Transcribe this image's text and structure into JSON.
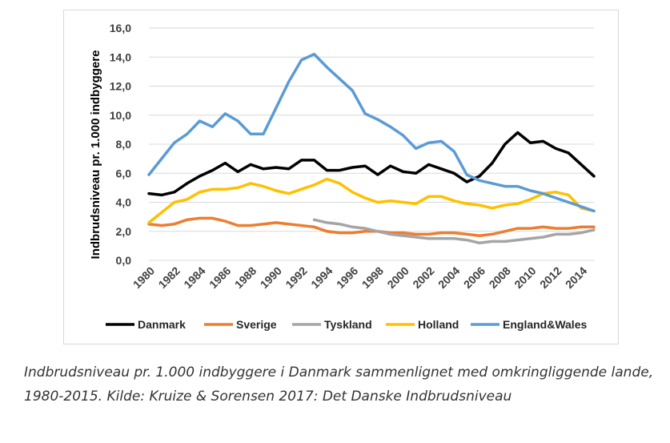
{
  "chart_data": {
    "type": "line",
    "ylabel": "Indbrudsniveau pr. 1.000 indbyggere",
    "xlabel": "",
    "ylim": [
      0,
      16
    ],
    "yticks": [
      "0,0",
      "2,0",
      "4,0",
      "6,0",
      "8,0",
      "10,0",
      "12,0",
      "14,0",
      "16,0"
    ],
    "xtick_labels": [
      "1980",
      "1982",
      "1984",
      "1986",
      "1988",
      "1990",
      "1992",
      "1994",
      "1996",
      "1998",
      "2000",
      "2002",
      "2004",
      "2006",
      "2008",
      "2010",
      "2012",
      "2014"
    ],
    "xlim": [
      1980,
      2015
    ],
    "grid": true,
    "legend_position": "bottom",
    "x": [
      1980,
      1981,
      1982,
      1983,
      1984,
      1985,
      1986,
      1987,
      1988,
      1989,
      1990,
      1991,
      1992,
      1993,
      1994,
      1995,
      1996,
      1997,
      1998,
      1999,
      2000,
      2001,
      2002,
      2003,
      2004,
      2005,
      2006,
      2007,
      2008,
      2009,
      2010,
      2011,
      2012,
      2013,
      2014,
      2015
    ],
    "series": [
      {
        "name": "Danmark",
        "color": "#000000",
        "values": [
          4.6,
          4.5,
          4.7,
          5.3,
          5.8,
          6.2,
          6.7,
          6.1,
          6.6,
          6.3,
          6.4,
          6.3,
          6.9,
          6.9,
          6.2,
          6.2,
          6.4,
          6.5,
          5.9,
          6.5,
          6.1,
          6.0,
          6.6,
          6.3,
          6.0,
          5.4,
          5.8,
          6.7,
          8.0,
          8.8,
          8.1,
          8.2,
          7.7,
          7.4,
          6.6,
          5.8
        ]
      },
      {
        "name": "Sverige",
        "color": "#ed7d31",
        "values": [
          2.5,
          2.4,
          2.5,
          2.8,
          2.9,
          2.9,
          2.7,
          2.4,
          2.4,
          2.5,
          2.6,
          2.5,
          2.4,
          2.3,
          2.0,
          1.9,
          1.9,
          2.0,
          2.0,
          1.9,
          1.9,
          1.8,
          1.8,
          1.9,
          1.9,
          1.8,
          1.7,
          1.8,
          2.0,
          2.2,
          2.2,
          2.3,
          2.2,
          2.2,
          2.3,
          2.3
        ]
      },
      {
        "name": "Tyskland",
        "color": "#a5a5a5",
        "values": [
          null,
          null,
          null,
          null,
          null,
          null,
          null,
          null,
          null,
          null,
          null,
          null,
          null,
          2.8,
          2.6,
          2.5,
          2.3,
          2.2,
          2.0,
          1.8,
          1.7,
          1.6,
          1.5,
          1.5,
          1.5,
          1.4,
          1.2,
          1.3,
          1.3,
          1.4,
          1.5,
          1.6,
          1.8,
          1.8,
          1.9,
          2.1
        ]
      },
      {
        "name": "Holland",
        "color": "#ffc000",
        "values": [
          2.6,
          3.3,
          4.0,
          4.2,
          4.7,
          4.9,
          4.9,
          5.0,
          5.3,
          5.1,
          4.8,
          4.6,
          4.9,
          5.2,
          5.6,
          5.3,
          4.7,
          4.3,
          4.0,
          4.1,
          4.0,
          3.9,
          4.4,
          4.4,
          4.1,
          3.9,
          3.8,
          3.6,
          3.8,
          3.9,
          4.2,
          4.6,
          4.7,
          4.5,
          3.6,
          3.4
        ]
      },
      {
        "name": "England&Wales",
        "color": "#5b9bd5",
        "values": [
          5.9,
          7.0,
          8.1,
          8.7,
          9.6,
          9.2,
          10.1,
          9.6,
          8.7,
          8.7,
          10.5,
          12.3,
          13.8,
          14.2,
          13.3,
          12.5,
          11.7,
          10.1,
          9.7,
          9.2,
          8.6,
          7.7,
          8.1,
          8.2,
          7.5,
          5.9,
          5.5,
          5.3,
          5.1,
          5.1,
          4.8,
          4.6,
          4.3,
          4.0,
          3.7,
          3.4
        ]
      }
    ]
  },
  "caption": "Indbrudsniveau pr. 1.000 indbyggere i Danmark sammenlignet med omkringliggende lande, 1980-2015. Kilde: Kruize & Sorensen 2017: Det Danske Indbrudsniveau"
}
